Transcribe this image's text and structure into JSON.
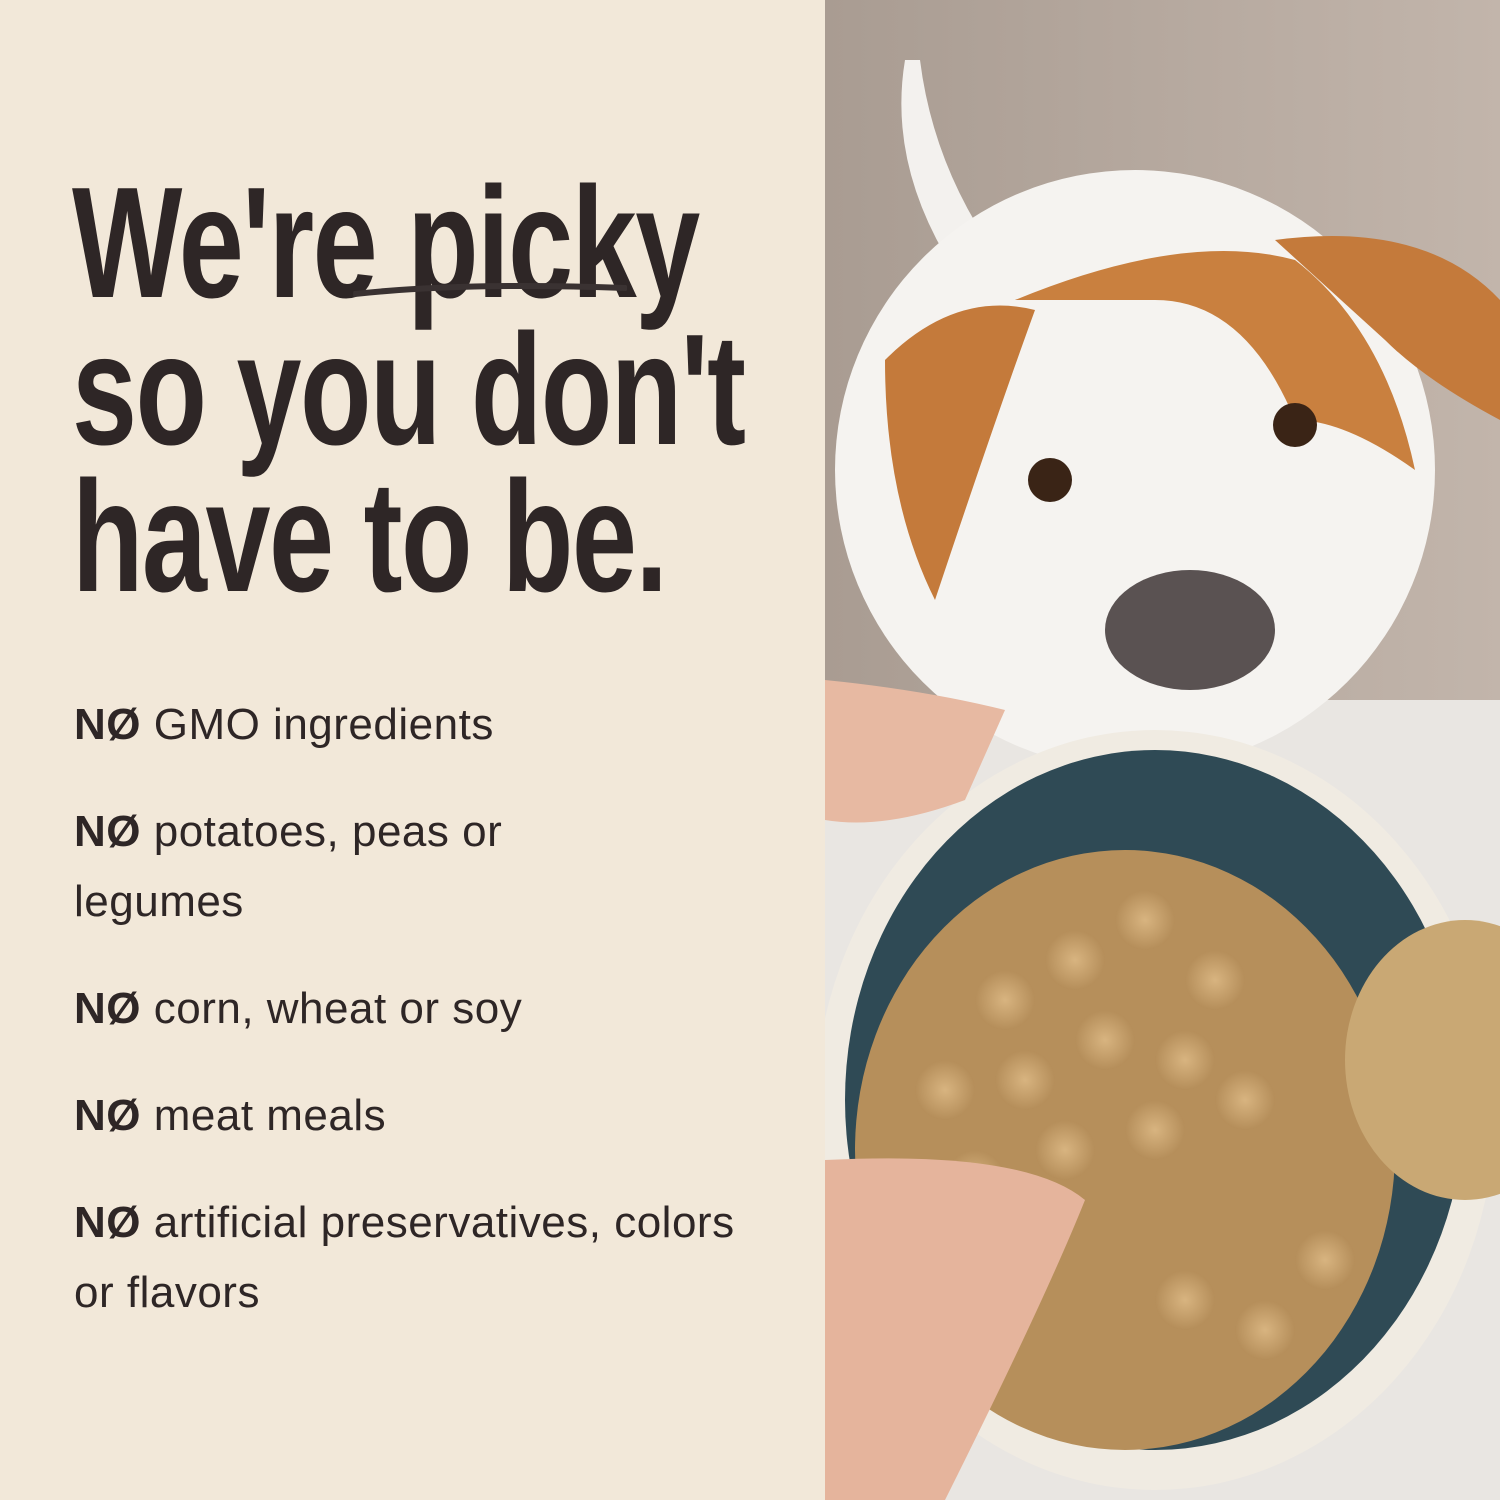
{
  "headline": {
    "line1_a": "We're ",
    "line1_b": "picky",
    "line2": "so you don't",
    "line3": "have to be."
  },
  "claims": [
    {
      "prefix": "NØ",
      "text": "GMO ingredients"
    },
    {
      "prefix": "NØ",
      "text": "potatoes, peas or legumes"
    },
    {
      "prefix": "NØ",
      "text": "corn, wheat or soy"
    },
    {
      "prefix": "NØ",
      "text": "meat meals"
    },
    {
      "prefix": "NØ",
      "text": "artificial preservatives, colors or flavors"
    }
  ],
  "colors": {
    "background": "#f2e8d9",
    "text": "#2e2626",
    "bowl": "#2f4a55"
  }
}
